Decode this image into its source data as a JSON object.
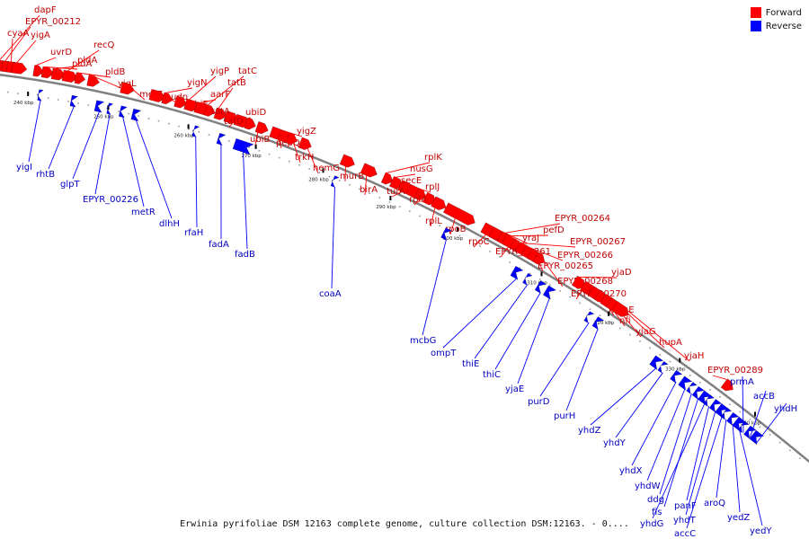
{
  "colors": {
    "forward": "#ff0000",
    "reverse": "#0000ff",
    "axis": "#808080"
  },
  "legend": {
    "forward_label": "Forward",
    "reverse_label": "Reverse"
  },
  "caption": "Erwinia pyrifoliae DSM 12163 complete genome, culture collection DSM:12163. - 0....",
  "ticks": [
    "240 kbp",
    "250 kbp",
    "260 kbp",
    "270 kbp",
    "280 kbp",
    "290 kbp",
    "300 kbp",
    "310 kbp",
    "320 kbp",
    "330 kbp",
    "340 kbp"
  ],
  "forward_genes": [
    "dapF",
    "EPYR_00212",
    "cyaA",
    "yigA",
    "uvrD",
    "pldA",
    "pldA",
    "recQ",
    "pldB",
    "yigL",
    "metE",
    "udp",
    "yigN",
    "ubiE",
    "yigP",
    "aarF",
    "tatC",
    "tatB",
    "tatA",
    "tatD",
    "ubiD",
    "ubiB",
    "pepQ",
    "yigZ",
    "trkH",
    "hemG",
    "murB",
    "birA",
    "rplK",
    "nusG",
    "secE",
    "tufA",
    "rplJ",
    "rplA",
    "rplL",
    "rpoB",
    "rpoC",
    "yraJ",
    "EPYR_00264",
    "pefD",
    "EPYR_00261",
    "EPYR_00267",
    "EPYR_00266",
    "EPYR_00265",
    "EPYR_00268",
    "yjaD",
    "EPYR_00270",
    "hemE",
    "nfi",
    "yjaG",
    "hupA",
    "yjaH",
    "EPYR_00289"
  ],
  "reverse_genes": [
    "yigI",
    "rhtB",
    "glpT",
    "EPYR_00226",
    "metR",
    "dlhH",
    "rfaH",
    "fadA",
    "fadB",
    "coaA",
    "mcbG",
    "ompT",
    "thiE",
    "thiC",
    "yjaE",
    "purD",
    "purH",
    "yhdZ",
    "yhdY",
    "yhdX",
    "yhdW",
    "ddg",
    "fis",
    "yhdG",
    "panF",
    "yhdT",
    "accC",
    "aroQ",
    "yedZ",
    "yedY",
    "prmA",
    "accB",
    "yhdH"
  ]
}
